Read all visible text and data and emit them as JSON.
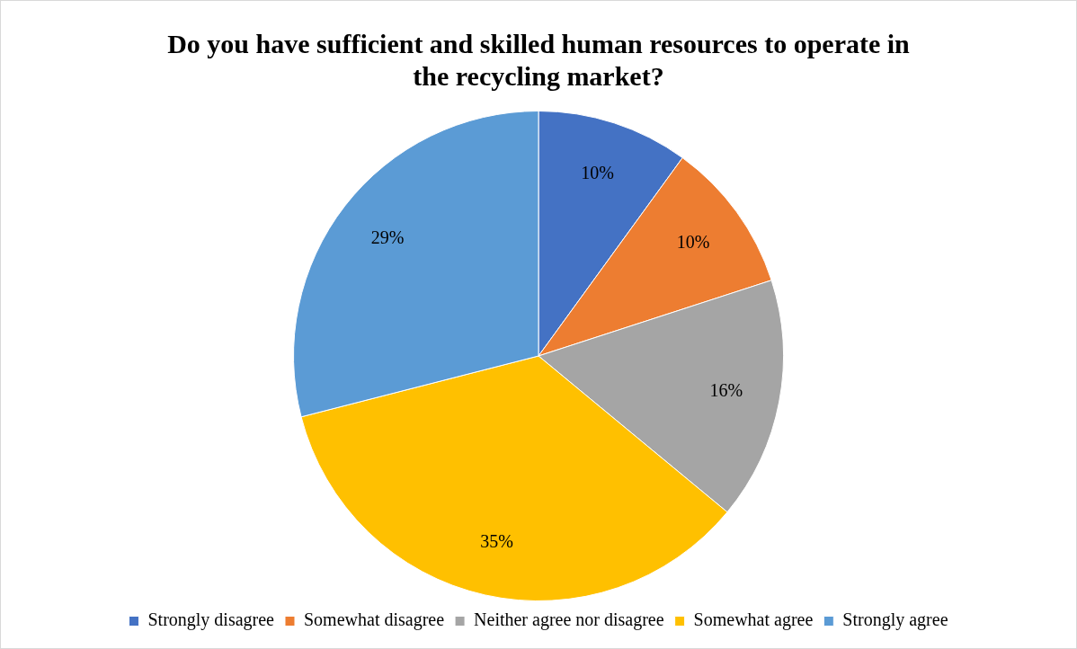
{
  "chart_data": {
    "type": "pie",
    "title": "Do you have sufficient and skilled human resources to operate in the recycling market?",
    "categories": [
      "Strongly disagree",
      "Somewhat disagree",
      "Neither agree nor disagree",
      "Somewhat agree",
      "Strongly agree"
    ],
    "values": [
      10,
      10,
      16,
      35,
      29
    ],
    "colors": [
      "#4472c4",
      "#ed7d31",
      "#a5a5a5",
      "#ffc000",
      "#5b9bd5"
    ],
    "value_labels": [
      "10%",
      "10%",
      "16%",
      "35%",
      "29%"
    ],
    "legend": "bottom"
  }
}
